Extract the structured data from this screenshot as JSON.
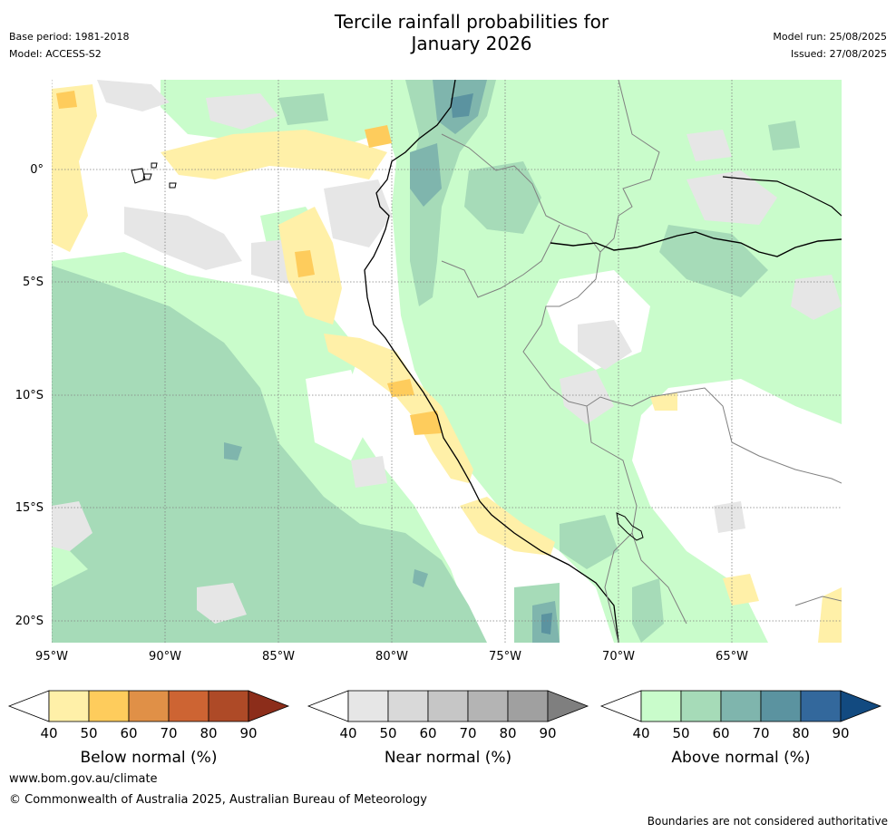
{
  "header": {
    "title_line1": "Tercile rainfall probabilities for",
    "title_line2": "January 2026",
    "base_period": "Base period: 1981-2018",
    "model": "Model: ACCESS-S2",
    "model_run": "Model run: 25/08/2025",
    "issued": "Issued: 27/08/2025"
  },
  "map": {
    "lat_labels": [
      "0°",
      "5°S",
      "10°S",
      "15°S",
      "20°S"
    ],
    "lon_labels": [
      "95°W",
      "90°W",
      "85°W",
      "80°W",
      "75°W",
      "70°W",
      "65°W"
    ],
    "lat_values": [
      0,
      -5,
      -10,
      -15,
      -20
    ],
    "lon_values": [
      -95,
      -90,
      -85,
      -80,
      -75,
      -70,
      -65
    ],
    "extent": {
      "lon_min": -95,
      "lon_max": -60.2,
      "lat_min": -21,
      "lat_max": 4
    }
  },
  "colorbars": [
    {
      "name": "Below normal (%)",
      "ticks": [
        "40",
        "50",
        "60",
        "70",
        "80",
        "90"
      ],
      "colors": [
        "#fff0a8",
        "#fecc5c",
        "#e09047",
        "#cd6433",
        "#ae4a27",
        "#8c2d1a"
      ]
    },
    {
      "name": "Near normal (%)",
      "ticks": [
        "40",
        "50",
        "60",
        "70",
        "80",
        "90"
      ],
      "colors": [
        "#e6e6e6",
        "#d9d9d9",
        "#c6c6c6",
        "#b4b4b4",
        "#a0a0a0",
        "#7f7f7f"
      ]
    },
    {
      "name": "Above normal (%)",
      "ticks": [
        "40",
        "50",
        "60",
        "70",
        "80",
        "90"
      ],
      "colors": [
        "#c9fccb",
        "#a6dbb8",
        "#7fb5ad",
        "#5b93a0",
        "#33689c",
        "#124a80"
      ]
    }
  ],
  "footer": {
    "url": "www.bom.gov.au/climate",
    "copyright": "© Commonwealth of Australia 2025, Australian Bureau of Meteorology",
    "disclaimer": "Boundaries are not considered authoritative"
  }
}
